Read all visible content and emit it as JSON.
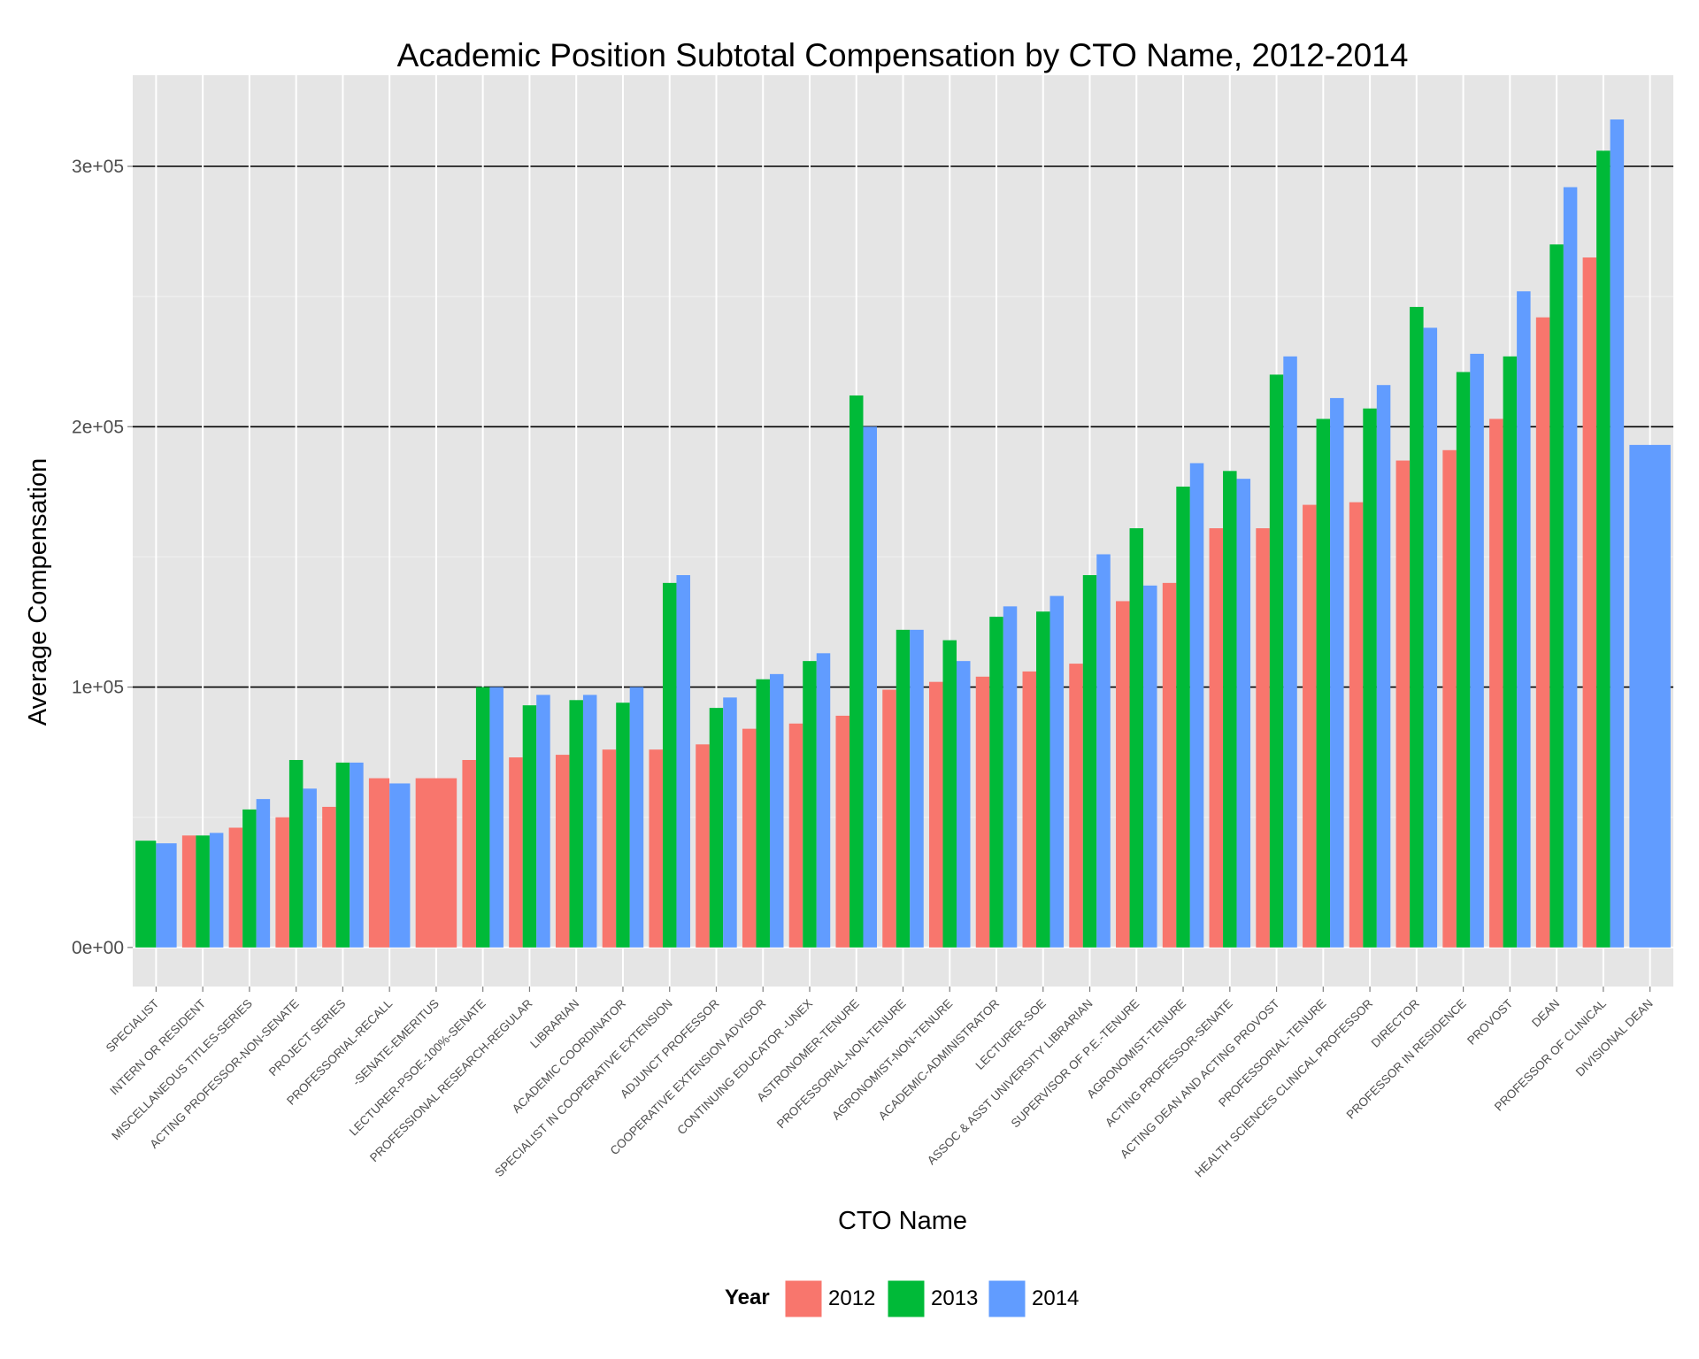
{
  "chart_data": {
    "type": "bar",
    "title": "Academic Position Subtotal Compensation by CTO Name, 2012-2014",
    "xlabel": "CTO Name",
    "ylabel": "Average Compensation",
    "ylim": [
      -15000,
      335000
    ],
    "yticks": [
      {
        "value": 0,
        "label": "0e+00"
      },
      {
        "value": 100000,
        "label": "1e+05"
      },
      {
        "value": 200000,
        "label": "2e+05"
      },
      {
        "value": 300000,
        "label": "3e+05"
      }
    ],
    "grid": true,
    "legend": {
      "title": "Year",
      "position": "bottom"
    },
    "categories": [
      "SPECIALIST",
      "INTERN OR RESIDENT",
      "MISCELLANEOUS TITLES-SERIES",
      "ACTING PROFESSOR-NON-SENATE",
      "PROJECT SERIES",
      "PROFESSORIAL-RECALL",
      "-SENATE-EMERITUS",
      "LECTURER-PSOE-100%-SENATE",
      "PROFESSIONAL RESEARCH-REGULAR",
      "LIBRARIAN",
      "ACADEMIC COORDINATOR",
      "SPECIALIST IN COOPERATIVE EXTENSION",
      "ADJUNCT PROFESSOR",
      "COOPERATIVE EXTENSION ADVISOR",
      "CONTINUING EDUCATOR -UNEX",
      "ASTRONOMER-TENURE",
      "PROFESSORIAL-NON-TENURE",
      "AGRONOMIST-NON-TENURE",
      "ACADEMIC-ADMINISTRATOR",
      "LECTURER-SOE",
      "ASSOC & ASST UNIVERSITY LIBRARIAN",
      "SUPERVISOR OF P.E.-TENURE",
      "AGRONOMIST-TENURE",
      "ACTING PROFESSOR-SENATE",
      "ACTING DEAN AND ACTING PROVOST",
      "PROFESSORIAL-TENURE",
      "HEALTH SCIENCES CLINICAL PROFESSOR",
      "DIRECTOR",
      "PROFESSOR IN RESIDENCE",
      "PROVOST",
      "DEAN",
      "PROFESSOR OF CLINICAL",
      "DIVISIONAL DEAN"
    ],
    "series": [
      {
        "name": "2012",
        "color": "#F8766D",
        "values": [
          null,
          43000,
          46000,
          50000,
          54000,
          65000,
          65000,
          72000,
          73000,
          74000,
          76000,
          76000,
          78000,
          84000,
          86000,
          89000,
          99000,
          102000,
          104000,
          106000,
          109000,
          133000,
          140000,
          161000,
          161000,
          170000,
          171000,
          187000,
          191000,
          203000,
          242000,
          265000,
          null
        ]
      },
      {
        "name": "2013",
        "color": "#00BA38",
        "values": [
          41000,
          43000,
          53000,
          72000,
          71000,
          null,
          null,
          100000,
          93000,
          95000,
          94000,
          140000,
          92000,
          103000,
          110000,
          212000,
          122000,
          118000,
          127000,
          129000,
          143000,
          161000,
          177000,
          183000,
          220000,
          203000,
          207000,
          246000,
          221000,
          227000,
          270000,
          306000,
          null
        ]
      },
      {
        "name": "2014",
        "color": "#619CFF",
        "values": [
          40000,
          44000,
          57000,
          61000,
          71000,
          63000,
          null,
          100000,
          97000,
          97000,
          100000,
          143000,
          96000,
          105000,
          113000,
          200000,
          122000,
          110000,
          131000,
          135000,
          151000,
          139000,
          186000,
          180000,
          227000,
          211000,
          216000,
          238000,
          228000,
          252000,
          292000,
          318000,
          193000
        ]
      }
    ]
  }
}
